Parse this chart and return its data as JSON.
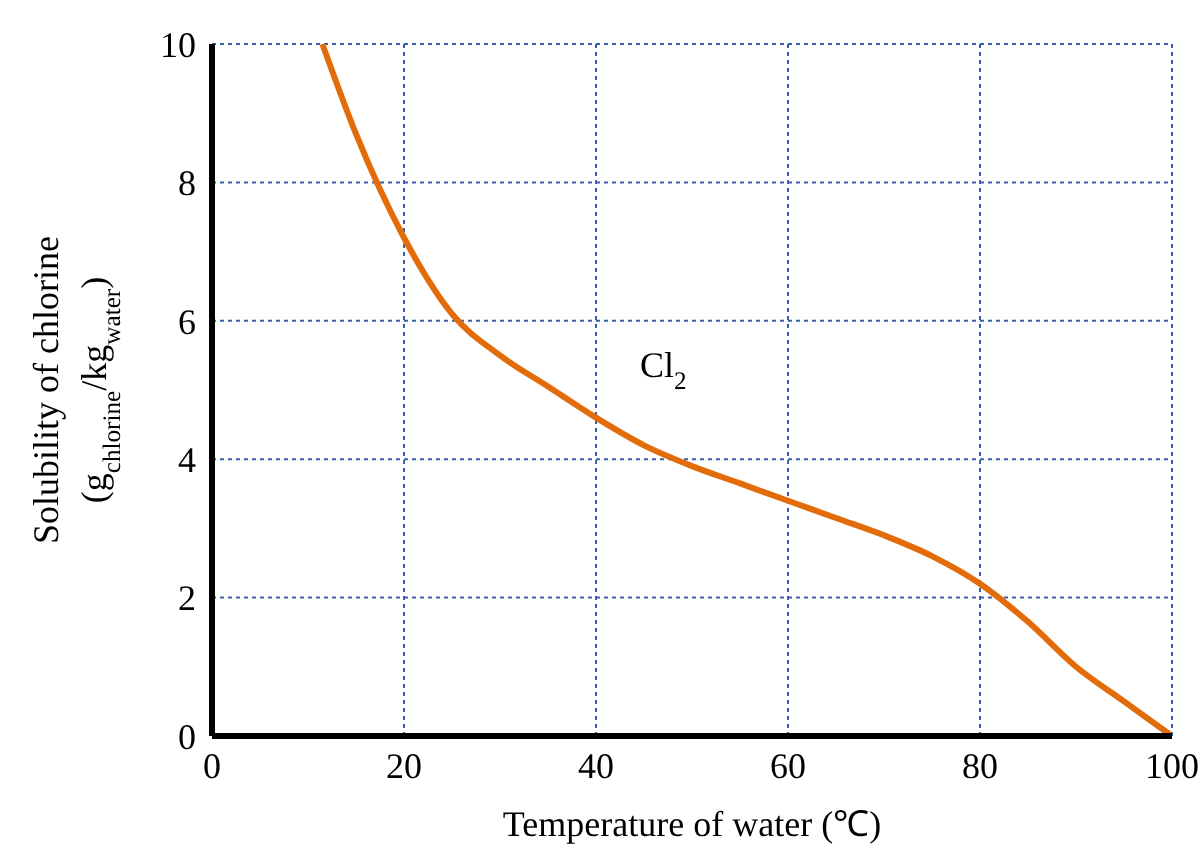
{
  "chart_data": {
    "type": "line",
    "xlabel": "Temperature of water (℃)",
    "ylabel": "Solubility of chlorine\n(g$_{chlorine}$/kg$_{water}$)",
    "x": [
      11.5,
      15,
      20,
      25,
      30,
      35,
      40,
      45,
      50,
      55,
      60,
      65,
      70,
      75,
      80,
      85,
      90,
      95,
      100
    ],
    "series": [
      {
        "color": "#e36c0a",
        "values": [
          10,
          8.7,
          7.2,
          6.1,
          5.5,
          5.05,
          4.6,
          4.2,
          3.9,
          3.65,
          3.4,
          3.15,
          2.9,
          2.6,
          2.2,
          1.65,
          1.0,
          0.5,
          0
        ]
      }
    ],
    "xlim": [
      0,
      100
    ],
    "xticks": [
      0,
      20,
      40,
      60,
      80,
      100
    ],
    "ylim": [
      0,
      10
    ],
    "yticks": [
      0,
      2,
      4,
      6,
      8,
      10
    ],
    "grid": true,
    "annotations": [
      "Cl$_{2}$"
    ]
  }
}
